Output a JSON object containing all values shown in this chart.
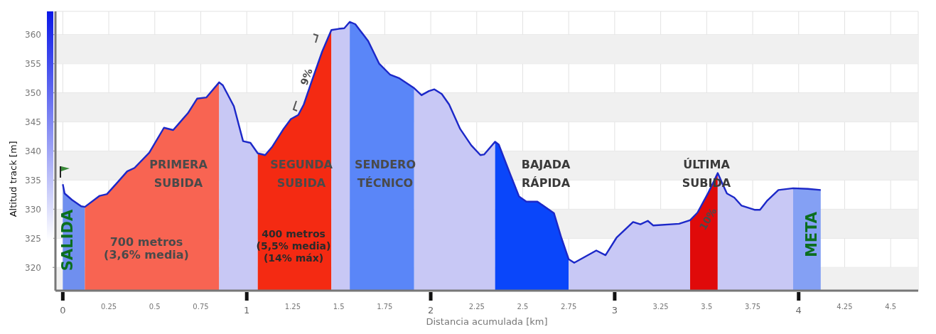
{
  "chart_data": {
    "type": "area",
    "xlabel": "Distancia acumulada [km]",
    "ylabel": "Altitud track [m]",
    "x": [
      0,
      0.01,
      0.05,
      0.1,
      0.12,
      0.2,
      0.24,
      0.3,
      0.35,
      0.39,
      0.47,
      0.55,
      0.6,
      0.68,
      0.73,
      0.78,
      0.85,
      0.87,
      0.93,
      0.98,
      1.02,
      1.06,
      1.1,
      1.14,
      1.2,
      1.24,
      1.28,
      1.31,
      1.35,
      1.41,
      1.46,
      1.5,
      1.53,
      1.56,
      1.59,
      1.66,
      1.72,
      1.78,
      1.83,
      1.91,
      1.95,
      1.99,
      2.02,
      2.06,
      2.1,
      2.16,
      2.22,
      2.27,
      2.29,
      2.35,
      2.37,
      2.43,
      2.48,
      2.52,
      2.58,
      2.67,
      2.71,
      2.75,
      2.78,
      2.9,
      2.95,
      3.01,
      3.1,
      3.14,
      3.18,
      3.21,
      3.35,
      3.41,
      3.45,
      3.51,
      3.56,
      3.61,
      3.65,
      3.69,
      3.76,
      3.79,
      3.83,
      3.89,
      3.97,
      4.05,
      4.12
    ],
    "series": [
      {
        "type": "area",
        "color": "#6f8fef",
        "x": [
          0,
          0.01,
          0.05,
          0.1,
          0.12
        ],
        "values": [
          334.3,
          332.7,
          331.6,
          330.5,
          330.4
        ]
      },
      {
        "type": "area",
        "color": "#f86452",
        "x": [
          0.12,
          0.2,
          0.24,
          0.3,
          0.35,
          0.39,
          0.47,
          0.55,
          0.6,
          0.68,
          0.73,
          0.78,
          0.85
        ],
        "values": [
          330.4,
          332.3,
          332.6,
          334.7,
          336.5,
          337.1,
          339.7,
          344.0,
          343.6,
          346.5,
          349.0,
          349.2,
          351.8
        ]
      },
      {
        "type": "area",
        "color": "#c8c8f5",
        "x": [
          0.85,
          0.87,
          0.93,
          0.98,
          1.02,
          1.06
        ],
        "values": [
          351.8,
          351.3,
          347.7,
          341.7,
          341.4,
          339.6
        ]
      },
      {
        "type": "area",
        "color": "#f42a12",
        "x": [
          1.06,
          1.1,
          1.14,
          1.2,
          1.24,
          1.28,
          1.31,
          1.35,
          1.41,
          1.46
        ],
        "values": [
          339.6,
          339.3,
          340.8,
          343.8,
          345.5,
          346.2,
          348.0,
          351.7,
          357.1,
          360.8
        ]
      },
      {
        "type": "area",
        "color": "#c8c8f5",
        "x": [
          1.46,
          1.5,
          1.53,
          1.56
        ],
        "values": [
          360.8,
          361.0,
          361.1,
          362.2
        ]
      },
      {
        "type": "area",
        "color": "#5a86f8",
        "x": [
          1.56,
          1.59,
          1.66,
          1.72,
          1.78,
          1.83,
          1.91
        ],
        "values": [
          362.2,
          361.8,
          358.9,
          355.0,
          353.1,
          352.5,
          350.8
        ]
      },
      {
        "type": "area",
        "color": "#c8c8f5",
        "x": [
          1.91,
          1.95,
          1.99,
          2.02,
          2.06,
          2.1,
          2.16,
          2.22,
          2.27,
          2.29,
          2.35
        ],
        "values": [
          350.8,
          349.6,
          350.3,
          350.6,
          349.8,
          348.0,
          343.8,
          341.0,
          339.3,
          339.4,
          341.6
        ]
      },
      {
        "type": "area",
        "color": "#0a46fa",
        "x": [
          2.35,
          2.37,
          2.43,
          2.48,
          2.52,
          2.58,
          2.67,
          2.71,
          2.75
        ],
        "values": [
          341.6,
          341.1,
          336.2,
          332.2,
          331.3,
          331.3,
          329.3,
          325.1,
          321.4
        ]
      },
      {
        "type": "area",
        "color": "#c8c8f5",
        "x": [
          2.75,
          2.78,
          2.9,
          2.95,
          3.01,
          3.1,
          3.14,
          3.18,
          3.21,
          3.35,
          3.41
        ],
        "values": [
          321.4,
          320.8,
          322.9,
          322.1,
          325.1,
          327.8,
          327.4,
          328.0,
          327.2,
          327.5,
          328.1
        ]
      },
      {
        "type": "area",
        "color": "#e00a0a",
        "x": [
          3.41,
          3.45,
          3.51,
          3.56
        ],
        "values": [
          328.1,
          329.4,
          332.9,
          336.2
        ]
      },
      {
        "type": "area",
        "color": "#c8c8f5",
        "x": [
          3.56,
          3.61,
          3.65,
          3.69,
          3.76,
          3.79,
          3.83,
          3.89,
          3.97
        ],
        "values": [
          336.2,
          332.7,
          332.0,
          330.6,
          329.9,
          329.9,
          331.5,
          333.3,
          333.6
        ]
      },
      {
        "type": "area",
        "color": "#84a0f4",
        "x": [
          3.97,
          4.05,
          4.12
        ],
        "values": [
          333.6,
          333.5,
          333.3
        ]
      },
      {
        "type": "line",
        "color": "#1c28c8",
        "values": [
          334.3,
          332.7,
          331.6,
          330.5,
          330.4,
          332.3,
          332.6,
          334.7,
          336.5,
          337.1,
          339.7,
          344.0,
          343.6,
          346.5,
          349.0,
          349.2,
          351.8,
          351.3,
          347.7,
          341.7,
          341.4,
          339.6,
          339.3,
          340.8,
          343.8,
          345.5,
          346.2,
          348.0,
          351.7,
          357.1,
          360.8,
          361.0,
          361.1,
          362.2,
          361.8,
          358.9,
          355.0,
          353.1,
          352.5,
          350.8,
          349.6,
          350.3,
          350.6,
          349.8,
          348.0,
          343.8,
          341.0,
          339.3,
          339.4,
          341.6,
          341.1,
          336.2,
          332.2,
          331.3,
          331.3,
          329.3,
          325.1,
          321.4,
          320.8,
          322.9,
          322.1,
          325.1,
          327.8,
          327.4,
          328.0,
          327.2,
          327.5,
          328.1,
          329.4,
          332.9,
          336.2,
          332.7,
          332.0,
          330.6,
          329.9,
          329.9,
          331.5,
          333.3,
          333.6,
          333.5,
          333.3
        ]
      }
    ],
    "annotations": [
      "SALIDA",
      "PRIMERA\nSUBIDA",
      "700 metros\n(3,6% media)",
      "SEGUNDA\nSUBIDA",
      "400 metros\n(5,5% media)\n(14% máx)",
      "9%",
      "SENDERO\nTÉCNICO",
      "BAJADA\nRÁPIDA",
      "ÚLTIMA\nSUBIDA",
      "10%",
      "META"
    ],
    "xlim": [
      -0.04,
      4.65
    ],
    "xticks": [
      0,
      0.25,
      0.5,
      0.75,
      1,
      1.25,
      1.5,
      1.75,
      2,
      2.25,
      2.5,
      2.75,
      3,
      3.25,
      3.5,
      3.75,
      4,
      4.25,
      4.5
    ],
    "ylim": [
      316,
      364
    ],
    "yticks": [
      320,
      325,
      330,
      335,
      340,
      345,
      350,
      355,
      360
    ],
    "grid": true,
    "legend": false
  }
}
